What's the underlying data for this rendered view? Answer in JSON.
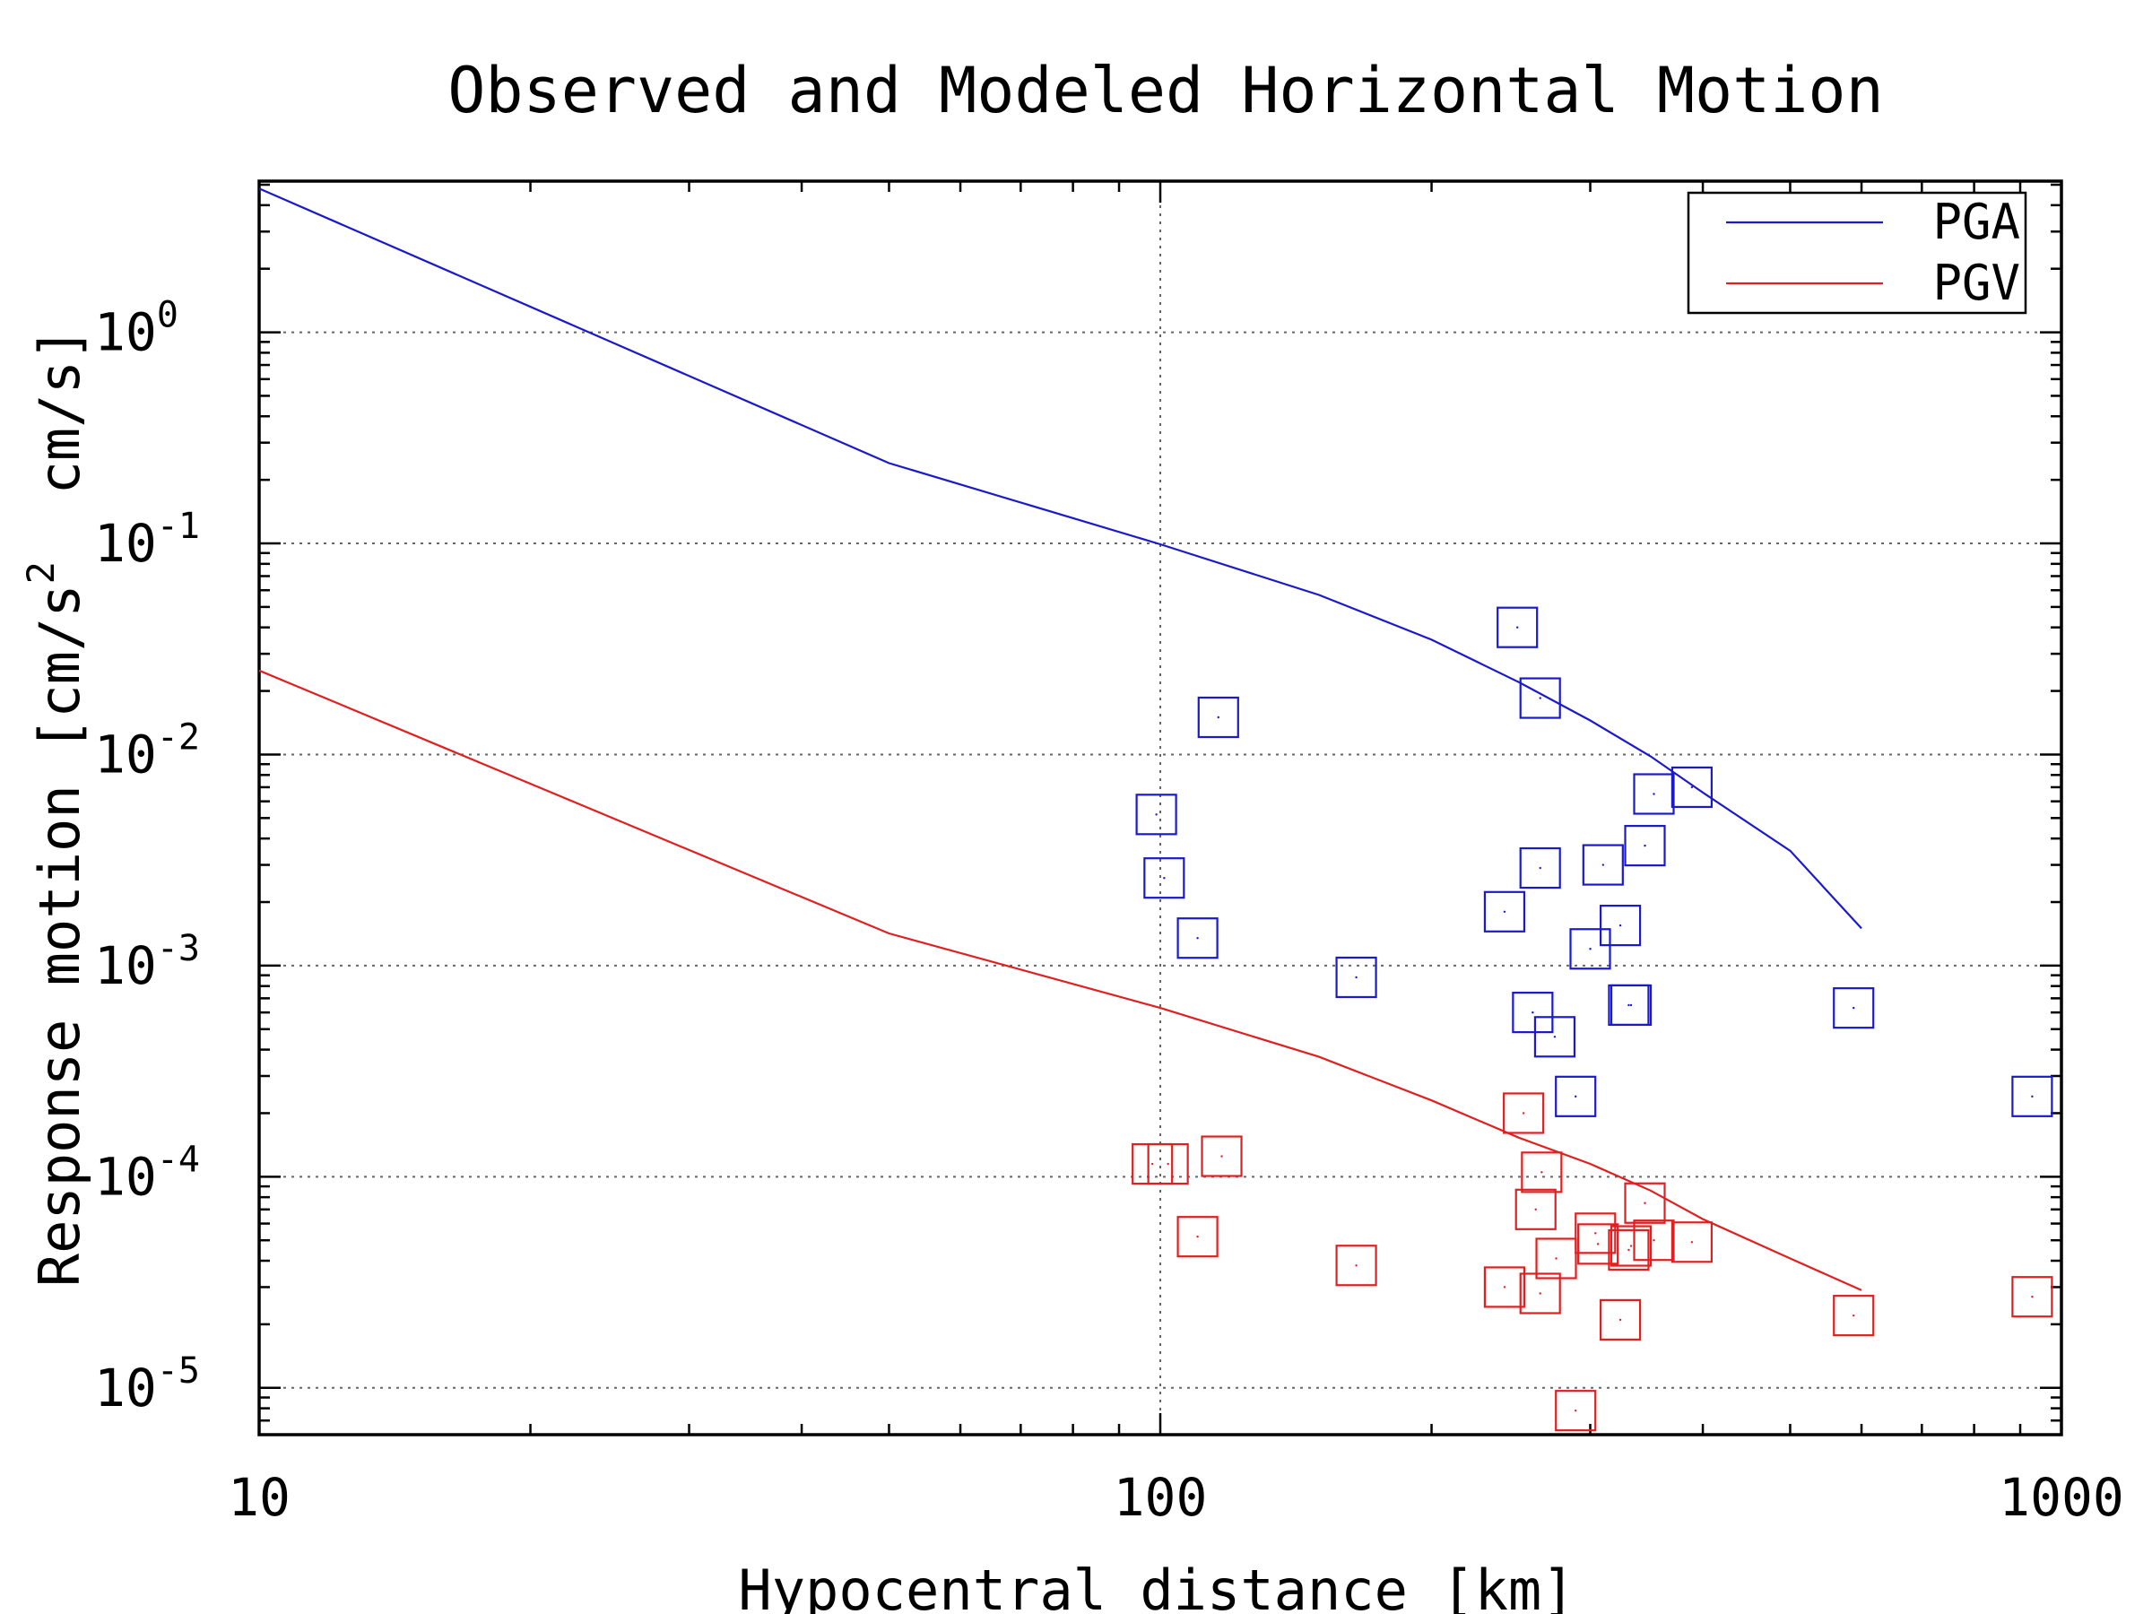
{
  "chart_data": {
    "type": "scatter",
    "title": "Observed and Modeled Horizontal Motion",
    "xlabel": "Hypocentral distance [km]",
    "ylabel": "Response motion [cm/s",
    "ylabel_sup": "2",
    "ylabel_tail": "  cm/s]",
    "x_scale": "log",
    "y_scale": "log",
    "xlim": [
      10,
      1000
    ],
    "ylim": [
      6e-06,
      5.2
    ],
    "x_ticks": [
      {
        "value": 10,
        "label": "10"
      },
      {
        "value": 100,
        "label": "100"
      },
      {
        "value": 1000,
        "label": "1000"
      }
    ],
    "y_ticks": [
      {
        "value": 1,
        "base": "10",
        "exp": "0"
      },
      {
        "value": 0.1,
        "base": "10",
        "exp": "-1"
      },
      {
        "value": 0.01,
        "base": "10",
        "exp": "-2"
      },
      {
        "value": 0.001,
        "base": "10",
        "exp": "-3"
      },
      {
        "value": 0.0001,
        "base": "10",
        "exp": "-4"
      },
      {
        "value": 1e-05,
        "base": "10",
        "exp": "-5"
      }
    ],
    "grid": true,
    "legend_position": "top-right",
    "series": [
      {
        "name": "PGA",
        "kind": "line",
        "color": "#1a1acc",
        "points": [
          [
            10,
            4.8
          ],
          [
            50,
            0.24
          ],
          [
            100,
            0.099
          ],
          [
            150,
            0.057
          ],
          [
            200,
            0.035
          ],
          [
            250,
            0.022
          ],
          [
            300,
            0.0145
          ],
          [
            350,
            0.0098
          ],
          [
            400,
            0.0066
          ],
          [
            500,
            0.0035
          ],
          [
            600,
            0.0015
          ]
        ]
      },
      {
        "name": "PGV",
        "kind": "line",
        "color": "#e02020",
        "points": [
          [
            10,
            0.025
          ],
          [
            50,
            0.00142
          ],
          [
            100,
            0.00063
          ],
          [
            150,
            0.00037
          ],
          [
            200,
            0.00023
          ],
          [
            250,
            0.000153
          ],
          [
            300,
            0.000115
          ],
          [
            350,
            8.6e-05
          ],
          [
            400,
            6.3e-05
          ],
          [
            500,
            4.1e-05
          ],
          [
            600,
            2.9e-05
          ]
        ]
      },
      {
        "name": "",
        "kind": "markers",
        "color": "#1a1acc",
        "points": [
          [
            99,
            0.0052
          ],
          [
            101,
            0.0026
          ],
          [
            110,
            0.00135
          ],
          [
            116,
            0.015
          ],
          [
            165,
            0.00088
          ],
          [
            241,
            0.0018
          ],
          [
            249,
            0.04
          ],
          [
            259,
            0.0006
          ],
          [
            264,
            0.0029
          ],
          [
            264,
            0.0185
          ],
          [
            274,
            0.00046
          ],
          [
            289,
            0.00024
          ],
          [
            300,
            0.0012
          ],
          [
            310,
            0.003
          ],
          [
            324,
            0.00155
          ],
          [
            331,
            0.00065
          ],
          [
            333,
            0.00065
          ],
          [
            345,
            0.0037
          ],
          [
            353,
            0.0065
          ],
          [
            389,
            0.007
          ],
          [
            588,
            0.00063
          ],
          [
            928,
            0.00024
          ]
        ]
      },
      {
        "name": "",
        "kind": "markers",
        "color": "#e02020",
        "points": [
          [
            98,
            0.000115
          ],
          [
            102,
            0.000115
          ],
          [
            110,
            5.2e-05
          ],
          [
            117,
            0.000125
          ],
          [
            165,
            3.8e-05
          ],
          [
            241,
            3e-05
          ],
          [
            253,
            0.0002
          ],
          [
            261,
            7e-05
          ],
          [
            264,
            2.8e-05
          ],
          [
            265,
            0.000105
          ],
          [
            275,
            4.1e-05
          ],
          [
            289,
            7.8e-06
          ],
          [
            304,
            5.4e-05
          ],
          [
            306,
            4.8e-05
          ],
          [
            324,
            2.1e-05
          ],
          [
            331,
            4.5e-05
          ],
          [
            333,
            4.7e-05
          ],
          [
            345,
            7.5e-05
          ],
          [
            353,
            5e-05
          ],
          [
            389,
            4.9e-05
          ],
          [
            588,
            2.2e-05
          ],
          [
            928,
            2.7e-05
          ]
        ]
      }
    ]
  }
}
